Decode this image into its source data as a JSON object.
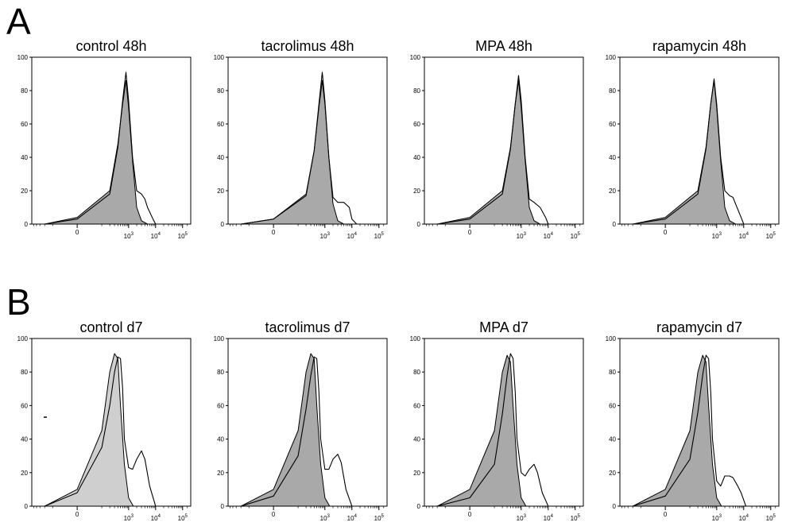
{
  "figure": {
    "panel_a_label": "A",
    "panel_b_label": "B",
    "fill_color": "#a9a9a9",
    "fill_color_light": "#cfcfcf",
    "line_color": "#000000"
  },
  "chart_data": [
    {
      "type": "area",
      "title": "control 48h",
      "ylim": [
        0,
        100
      ],
      "yticks": [
        0,
        20,
        40,
        60,
        80,
        100
      ],
      "xtick_labels": [
        "0",
        "10^3",
        "10^4",
        "10^5"
      ],
      "series": [
        {
          "filled": true,
          "x": [
            "-200",
            "0",
            "200",
            "400",
            "600",
            "800",
            "1000",
            "1400",
            "2000",
            "3000",
            "5000"
          ],
          "y": [
            0,
            4,
            20,
            48,
            72,
            86,
            70,
            38,
            10,
            2,
            0
          ]
        },
        {
          "filled": false,
          "x": [
            "-200",
            "0",
            "200",
            "400",
            "600",
            "800",
            "1000",
            "1400",
            "2000",
            "3000",
            "4000",
            "5000",
            "8000",
            "10000"
          ],
          "y": [
            0,
            3,
            18,
            46,
            74,
            91,
            74,
            40,
            20,
            18,
            15,
            10,
            3,
            0
          ]
        }
      ]
    },
    {
      "type": "area",
      "title": "tacrolimus 48h",
      "ylim": [
        0,
        100
      ],
      "yticks": [
        0,
        20,
        40,
        60,
        80,
        100
      ],
      "xtick_labels": [
        "0",
        "10^3",
        "10^4",
        "10^5"
      ],
      "series": [
        {
          "filled": true,
          "x": [
            "-200",
            "0",
            "200",
            "400",
            "600",
            "800",
            "1000",
            "1400",
            "2000",
            "3000",
            "5000"
          ],
          "y": [
            0,
            3,
            18,
            44,
            70,
            86,
            72,
            40,
            12,
            2,
            0
          ]
        },
        {
          "filled": false,
          "x": [
            "-200",
            "0",
            "200",
            "400",
            "600",
            "800",
            "1000",
            "1400",
            "2000",
            "3000",
            "5000",
            "8000",
            "10000",
            "15000"
          ],
          "y": [
            0,
            3,
            17,
            44,
            72,
            91,
            74,
            40,
            16,
            13,
            13,
            10,
            3,
            0
          ]
        }
      ]
    },
    {
      "type": "area",
      "title": "MPA 48h",
      "ylim": [
        0,
        100
      ],
      "yticks": [
        0,
        20,
        40,
        60,
        80,
        100
      ],
      "xtick_labels": [
        "0",
        "10^3",
        "10^4",
        "10^5"
      ],
      "series": [
        {
          "filled": true,
          "x": [
            "-200",
            "0",
            "200",
            "400",
            "600",
            "800",
            "1000",
            "1400",
            "2000",
            "3000",
            "5000"
          ],
          "y": [
            0,
            4,
            20,
            46,
            72,
            86,
            70,
            38,
            10,
            2,
            0
          ]
        },
        {
          "filled": false,
          "x": [
            "-200",
            "0",
            "200",
            "400",
            "600",
            "800",
            "1000",
            "1400",
            "2000",
            "3000",
            "5000",
            "8000",
            "10000"
          ],
          "y": [
            0,
            3,
            18,
            45,
            72,
            89,
            74,
            40,
            15,
            13,
            10,
            4,
            0
          ]
        }
      ]
    },
    {
      "type": "area",
      "title": "rapamycin 48h",
      "ylim": [
        0,
        100
      ],
      "yticks": [
        0,
        20,
        40,
        60,
        80,
        100
      ],
      "xtick_labels": [
        "0",
        "10^3",
        "10^4",
        "10^5"
      ],
      "series": [
        {
          "filled": true,
          "x": [
            "-200",
            "0",
            "200",
            "400",
            "600",
            "800",
            "1000",
            "1400",
            "2000",
            "3000",
            "5000"
          ],
          "y": [
            0,
            4,
            20,
            46,
            72,
            86,
            70,
            38,
            10,
            2,
            0
          ]
        },
        {
          "filled": false,
          "x": [
            "-200",
            "0",
            "200",
            "400",
            "600",
            "800",
            "1000",
            "1400",
            "2000",
            "3000",
            "4000",
            "5000",
            "8000",
            "10000"
          ],
          "y": [
            0,
            3,
            18,
            45,
            72,
            87,
            72,
            40,
            20,
            17,
            16,
            12,
            4,
            0
          ]
        }
      ]
    },
    {
      "type": "area",
      "title": "control d7",
      "ylim": [
        0,
        100
      ],
      "yticks": [
        0,
        20,
        40,
        60,
        80,
        100
      ],
      "xtick_labels": [
        "0",
        "10^3",
        "10^4",
        "10^5"
      ],
      "series": [
        {
          "filled": true,
          "light": true,
          "x": [
            "-200",
            "0",
            "100",
            "200",
            "300",
            "400",
            "500",
            "700",
            "1000",
            "1500"
          ],
          "y": [
            0,
            10,
            45,
            80,
            91,
            88,
            60,
            25,
            5,
            0
          ]
        },
        {
          "filled": false,
          "x": [
            "-200",
            "0",
            "100",
            "200",
            "300",
            "400",
            "500",
            "600",
            "700",
            "1000",
            "1400",
            "2000",
            "3000",
            "4000",
            "6000",
            "10000"
          ],
          "y": [
            0,
            8,
            35,
            60,
            80,
            89,
            88,
            70,
            40,
            23,
            22,
            28,
            33,
            28,
            12,
            0
          ]
        }
      ]
    },
    {
      "type": "area",
      "title": "tacrolimus d7",
      "ylim": [
        0,
        100
      ],
      "yticks": [
        0,
        20,
        40,
        60,
        80,
        100
      ],
      "xtick_labels": [
        "0",
        "10^3",
        "10^4",
        "10^5"
      ],
      "series": [
        {
          "filled": true,
          "x": [
            "-200",
            "0",
            "100",
            "200",
            "300",
            "400",
            "500",
            "700",
            "1000",
            "1500"
          ],
          "y": [
            0,
            10,
            45,
            80,
            91,
            88,
            60,
            25,
            5,
            0
          ]
        },
        {
          "filled": false,
          "x": [
            "-200",
            "0",
            "100",
            "200",
            "300",
            "400",
            "500",
            "600",
            "700",
            "1000",
            "1400",
            "2000",
            "3000",
            "4000",
            "6000",
            "10000"
          ],
          "y": [
            0,
            6,
            30,
            58,
            78,
            89,
            88,
            68,
            40,
            22,
            22,
            28,
            31,
            26,
            10,
            0
          ]
        }
      ]
    },
    {
      "type": "area",
      "title": "MPA d7",
      "ylim": [
        0,
        100
      ],
      "yticks": [
        0,
        20,
        40,
        60,
        80,
        100
      ],
      "xtick_labels": [
        "0",
        "10^3",
        "10^4",
        "10^5"
      ],
      "series": [
        {
          "filled": true,
          "x": [
            "-200",
            "0",
            "100",
            "200",
            "300",
            "400",
            "500",
            "700",
            "1000",
            "1500"
          ],
          "y": [
            0,
            10,
            45,
            80,
            90,
            86,
            60,
            25,
            5,
            0
          ]
        },
        {
          "filled": false,
          "x": [
            "-200",
            "0",
            "100",
            "200",
            "300",
            "400",
            "500",
            "600",
            "700",
            "1000",
            "1400",
            "2000",
            "3000",
            "4000",
            "6000",
            "10000"
          ],
          "y": [
            0,
            5,
            25,
            55,
            78,
            91,
            88,
            68,
            40,
            20,
            18,
            22,
            25,
            20,
            8,
            0
          ]
        }
      ]
    },
    {
      "type": "area",
      "title": "rapamycin d7",
      "ylim": [
        0,
        100
      ],
      "yticks": [
        0,
        20,
        40,
        60,
        80,
        100
      ],
      "xtick_labels": [
        "0",
        "10^3",
        "10^4",
        "10^5"
      ],
      "series": [
        {
          "filled": true,
          "x": [
            "-200",
            "0",
            "100",
            "200",
            "300",
            "400",
            "500",
            "700",
            "1000",
            "1500"
          ],
          "y": [
            0,
            10,
            45,
            80,
            90,
            86,
            60,
            25,
            5,
            0
          ]
        },
        {
          "filled": false,
          "x": [
            "-200",
            "0",
            "100",
            "200",
            "300",
            "400",
            "500",
            "600",
            "700",
            "1000",
            "1400",
            "2000",
            "3000",
            "4000",
            "6000",
            "8000",
            "12000"
          ],
          "y": [
            0,
            6,
            28,
            56,
            78,
            90,
            88,
            68,
            40,
            15,
            12,
            18,
            18,
            17,
            12,
            8,
            0
          ]
        }
      ]
    }
  ]
}
